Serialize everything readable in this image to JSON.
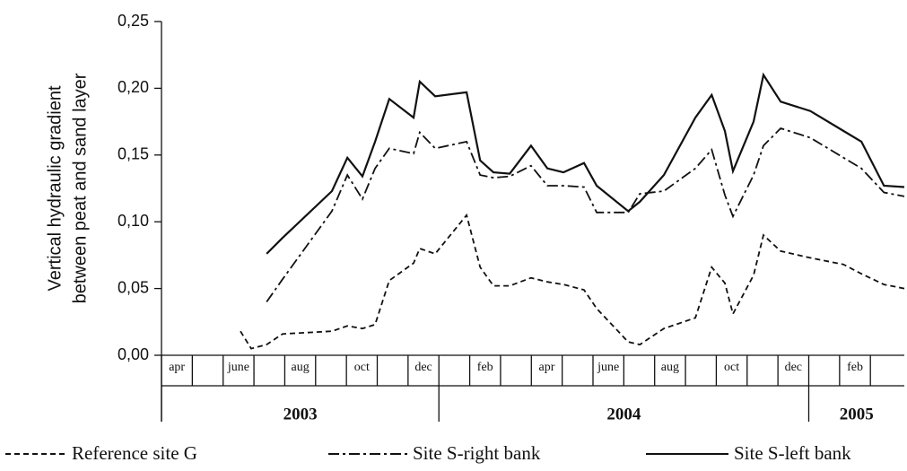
{
  "chart_data": {
    "type": "line",
    "ylabel": [
      "Vertical hydraulic gradient",
      "between peat and sand layer"
    ],
    "ylim": [
      0,
      0.25
    ],
    "yticks": [
      {
        "value": 0,
        "label": "0,00"
      },
      {
        "value": 0.05,
        "label": "0,05"
      },
      {
        "value": 0.1,
        "label": "0,10"
      },
      {
        "value": 0.15,
        "label": "0,15"
      },
      {
        "value": 0.2,
        "label": "0,20"
      },
      {
        "value": 0.25,
        "label": "0,25"
      }
    ],
    "xlim": [
      0,
      24.1
    ],
    "categories": [
      "apr",
      null,
      "june",
      null,
      "aug",
      null,
      "oct",
      null,
      "dec",
      null,
      "feb",
      null,
      "apr",
      null,
      "june",
      null,
      "aug",
      null,
      "oct",
      null,
      "dec",
      null,
      "feb",
      null
    ],
    "years": [
      "2003",
      "2004",
      "2005"
    ],
    "x": [
      2.56,
      2.91,
      3.41,
      3.93,
      5.53,
      6.03,
      6.52,
      6.93,
      7.39,
      8.18,
      8.38,
      8.88,
      9.9,
      10.34,
      10.77,
      11.3,
      11.99,
      12.52,
      13.04,
      13.71,
      14.12,
      15.14,
      15.52,
      16.3,
      17.32,
      17.85,
      18.28,
      18.54,
      19.21,
      19.53,
      20.09,
      21.05,
      22.13,
      22.71,
      23.44,
      24.1
    ],
    "series": [
      {
        "name": "Reference site G",
        "color": "#111111",
        "line_style": "dashed",
        "values": [
          0.018,
          0.005,
          0.008,
          0.016,
          0.018,
          0.022,
          0.02,
          0.023,
          0.056,
          0.069,
          0.08,
          0.076,
          0.105,
          0.066,
          0.052,
          0.052,
          0.058,
          0.055,
          0.053,
          0.049,
          0.035,
          0.01,
          0.008,
          0.02,
          0.028,
          0.066,
          0.054,
          0.031,
          0.06,
          0.09,
          0.078,
          0.073,
          0.068,
          0.061,
          0.053,
          0.05
        ]
      },
      {
        "name": "Site S-right bank",
        "color": "#111111",
        "line_style": "dashdot",
        "values": [
          null,
          null,
          0.04,
          0.057,
          0.108,
          0.135,
          0.117,
          0.14,
          0.155,
          0.151,
          0.167,
          0.155,
          0.16,
          0.135,
          0.133,
          0.134,
          0.142,
          0.127,
          0.127,
          0.126,
          0.107,
          0.107,
          0.121,
          0.123,
          0.14,
          0.154,
          0.12,
          0.104,
          0.135,
          0.157,
          0.17,
          0.163,
          0.148,
          0.14,
          0.122,
          0.119
        ]
      },
      {
        "name": "Site S-left bank",
        "color": "#111111",
        "line_style": "solid",
        "values": [
          null,
          null,
          0.076,
          0.088,
          0.123,
          0.148,
          0.134,
          0.16,
          0.192,
          0.178,
          0.205,
          0.194,
          0.197,
          0.146,
          0.137,
          0.136,
          0.157,
          0.14,
          0.137,
          0.144,
          0.127,
          0.108,
          0.115,
          0.135,
          0.178,
          0.195,
          0.168,
          0.138,
          0.175,
          0.21,
          0.19,
          0.183,
          0.168,
          0.16,
          0.127,
          0.126
        ]
      }
    ]
  }
}
